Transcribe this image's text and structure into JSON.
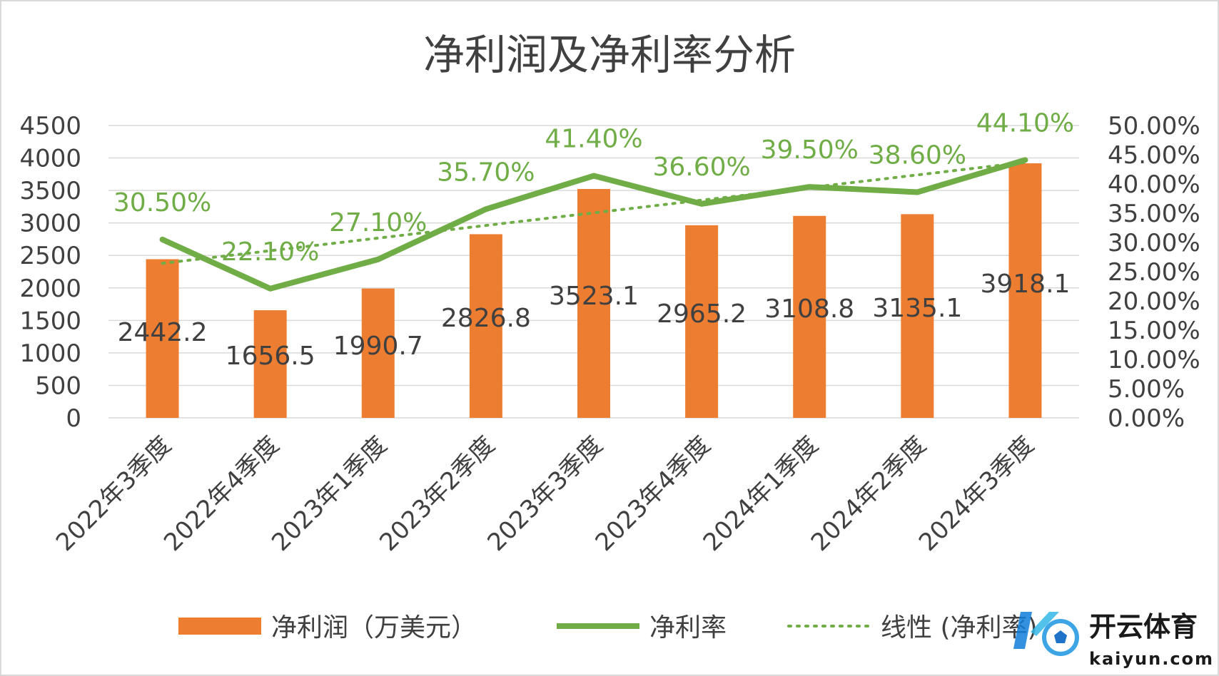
{
  "chart_data": {
    "type": "bar",
    "title": "净利润及净利率分析",
    "categories": [
      "2022年3季度",
      "2022年4季度",
      "2023年1季度",
      "2023年2季度",
      "2023年3季度",
      "2023年4季度",
      "2024年1季度",
      "2024年2季度",
      "2024年3季度"
    ],
    "series": [
      {
        "name": "净利润（万美元）",
        "type": "bar",
        "axis": "left",
        "values": [
          2442.2,
          1656.5,
          1990.7,
          2826.8,
          3523.1,
          2965.2,
          3108.8,
          3135.1,
          3918.1
        ],
        "labels": [
          "2442.2",
          "1656.5",
          "1990.7",
          "2826.8",
          "3523.1",
          "2965.2",
          "3108.8",
          "3135.1",
          "3918.1"
        ],
        "color": "#ED7D31"
      },
      {
        "name": "净利率",
        "type": "line",
        "axis": "right",
        "values": [
          30.5,
          22.1,
          27.1,
          35.7,
          41.4,
          36.6,
          39.5,
          38.6,
          44.1
        ],
        "labels": [
          "30.50%",
          "22.10%",
          "27.10%",
          "35.70%",
          "41.40%",
          "36.60%",
          "39.50%",
          "38.60%",
          "44.10%"
        ],
        "color": "#70AD47"
      },
      {
        "name": "线性 (净利率)",
        "type": "trendline",
        "axis": "right",
        "color": "#70AD47"
      }
    ],
    "y_left": {
      "min": 0,
      "max": 4500,
      "ticks": [
        "0",
        "500",
        "1000",
        "1500",
        "2000",
        "2500",
        "3000",
        "3500",
        "4000",
        "4500"
      ]
    },
    "y_right": {
      "min": 0,
      "max": 50,
      "ticks": [
        "0.00%",
        "5.00%",
        "10.00%",
        "15.00%",
        "20.00%",
        "25.00%",
        "30.00%",
        "35.00%",
        "40.00%",
        "45.00%",
        "50.00%"
      ]
    },
    "grid": true,
    "legend_position": "bottom",
    "colors": {
      "bar": "#ED7D31",
      "line": "#70AD47",
      "grid": "#D9D9D9",
      "text": "#404040"
    }
  },
  "watermark": {
    "text_cn": "开云体育",
    "text_en": "kaiyun.com"
  }
}
